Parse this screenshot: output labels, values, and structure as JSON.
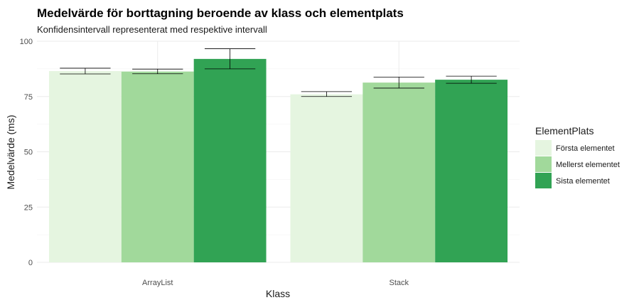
{
  "chart_data": {
    "type": "bar",
    "title": "Medelvärde för borttagning beroende av klass och elementplats",
    "subtitle": "Konfidensintervall representerat med respektive intervall",
    "xlabel": "Klass",
    "ylabel": "Medelvärde (ms)",
    "ylim": [
      0,
      100
    ],
    "yticks": [
      "0",
      "25",
      "50",
      "75",
      "100"
    ],
    "categories": [
      "ArrayList",
      "Stack"
    ],
    "legend_title": "ElementPlats",
    "legend_position": "right",
    "grid": true,
    "series": [
      {
        "name": "Första elementet",
        "color": "#e5f5e0",
        "values": [
          86.5,
          76.0
        ],
        "ci_low": [
          85.2,
          75.0
        ],
        "ci_high": [
          87.8,
          77.2
        ]
      },
      {
        "name": "Mellerst elementet",
        "color": "#a1d99b",
        "values": [
          86.3,
          81.3
        ],
        "ci_low": [
          85.3,
          78.8
        ],
        "ci_high": [
          87.4,
          83.8
        ]
      },
      {
        "name": "Sista elementet",
        "color": "#31a354",
        "values": [
          92.0,
          82.6
        ],
        "ci_low": [
          87.5,
          81.0
        ],
        "ci_high": [
          96.6,
          84.2
        ]
      }
    ]
  }
}
